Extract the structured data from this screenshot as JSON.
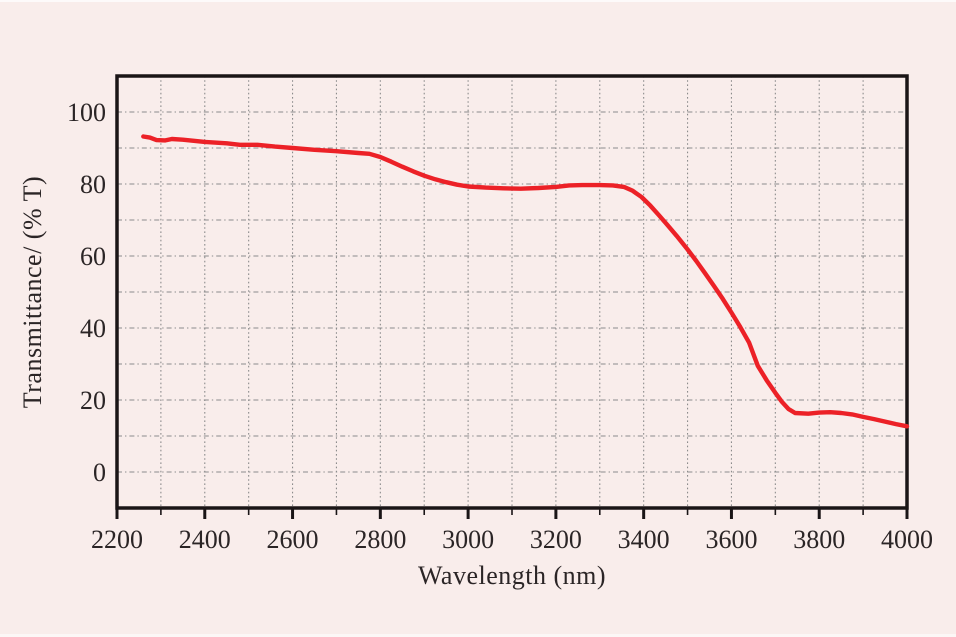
{
  "page": {
    "background_color": "#f9edeb",
    "frame_color": "#1a1516",
    "grid_color": "#8c8c8c",
    "text_color": "#2b2526"
  },
  "chart_data": {
    "type": "line",
    "title": "",
    "xlabel": "Wavelength (nm)",
    "ylabel": "Transmittance/ (% T)",
    "xlim": [
      2200,
      4000
    ],
    "ylim": [
      -10,
      110
    ],
    "grid": "dotted",
    "grid_x_step": 100,
    "grid_y_step": 10,
    "x_major_tick_step": 200,
    "x_minor_tick_step": 100,
    "x_tick_labels": [
      "2200",
      "2400",
      "2600",
      "2800",
      "3000",
      "3200",
      "3400",
      "3600",
      "3800",
      "4000"
    ],
    "y_tick_labels": [
      "0",
      "20",
      "40",
      "60",
      "80",
      "100"
    ],
    "y_tick_values": [
      0,
      20,
      40,
      60,
      80,
      100
    ],
    "legend": "none",
    "series": [
      {
        "name": "transmittance-spectrum",
        "color": "#ec2127",
        "points": [
          [
            2260,
            93.2
          ],
          [
            2275,
            92.9
          ],
          [
            2290,
            92.2
          ],
          [
            2310,
            92.1
          ],
          [
            2325,
            92.5
          ],
          [
            2350,
            92.3
          ],
          [
            2400,
            91.7
          ],
          [
            2450,
            91.3
          ],
          [
            2480,
            90.9
          ],
          [
            2520,
            90.9
          ],
          [
            2560,
            90.4
          ],
          [
            2600,
            90.0
          ],
          [
            2650,
            89.5
          ],
          [
            2700,
            89.1
          ],
          [
            2750,
            88.6
          ],
          [
            2775,
            88.4
          ],
          [
            2800,
            87.5
          ],
          [
            2825,
            86.2
          ],
          [
            2850,
            84.8
          ],
          [
            2875,
            83.5
          ],
          [
            2900,
            82.3
          ],
          [
            2925,
            81.3
          ],
          [
            2950,
            80.5
          ],
          [
            2975,
            79.8
          ],
          [
            3000,
            79.3
          ],
          [
            3040,
            79.0
          ],
          [
            3080,
            78.8
          ],
          [
            3120,
            78.7
          ],
          [
            3160,
            78.9
          ],
          [
            3200,
            79.2
          ],
          [
            3230,
            79.6
          ],
          [
            3260,
            79.7
          ],
          [
            3300,
            79.7
          ],
          [
            3330,
            79.6
          ],
          [
            3355,
            79.2
          ],
          [
            3375,
            78.1
          ],
          [
            3395,
            76.4
          ],
          [
            3415,
            74.0
          ],
          [
            3435,
            71.3
          ],
          [
            3455,
            68.5
          ],
          [
            3475,
            65.6
          ],
          [
            3500,
            61.8
          ],
          [
            3520,
            58.6
          ],
          [
            3540,
            55.2
          ],
          [
            3560,
            51.7
          ],
          [
            3580,
            48.1
          ],
          [
            3600,
            44.3
          ],
          [
            3620,
            40.3
          ],
          [
            3640,
            36.0
          ],
          [
            3660,
            29.5
          ],
          [
            3680,
            25.5
          ],
          [
            3700,
            22.0
          ],
          [
            3715,
            19.5
          ],
          [
            3730,
            17.5
          ],
          [
            3745,
            16.4
          ],
          [
            3775,
            16.2
          ],
          [
            3800,
            16.5
          ],
          [
            3825,
            16.6
          ],
          [
            3850,
            16.4
          ],
          [
            3875,
            16.0
          ],
          [
            3900,
            15.3
          ],
          [
            3925,
            14.7
          ],
          [
            3950,
            14.0
          ],
          [
            3975,
            13.3
          ],
          [
            4000,
            12.7
          ]
        ]
      }
    ]
  }
}
